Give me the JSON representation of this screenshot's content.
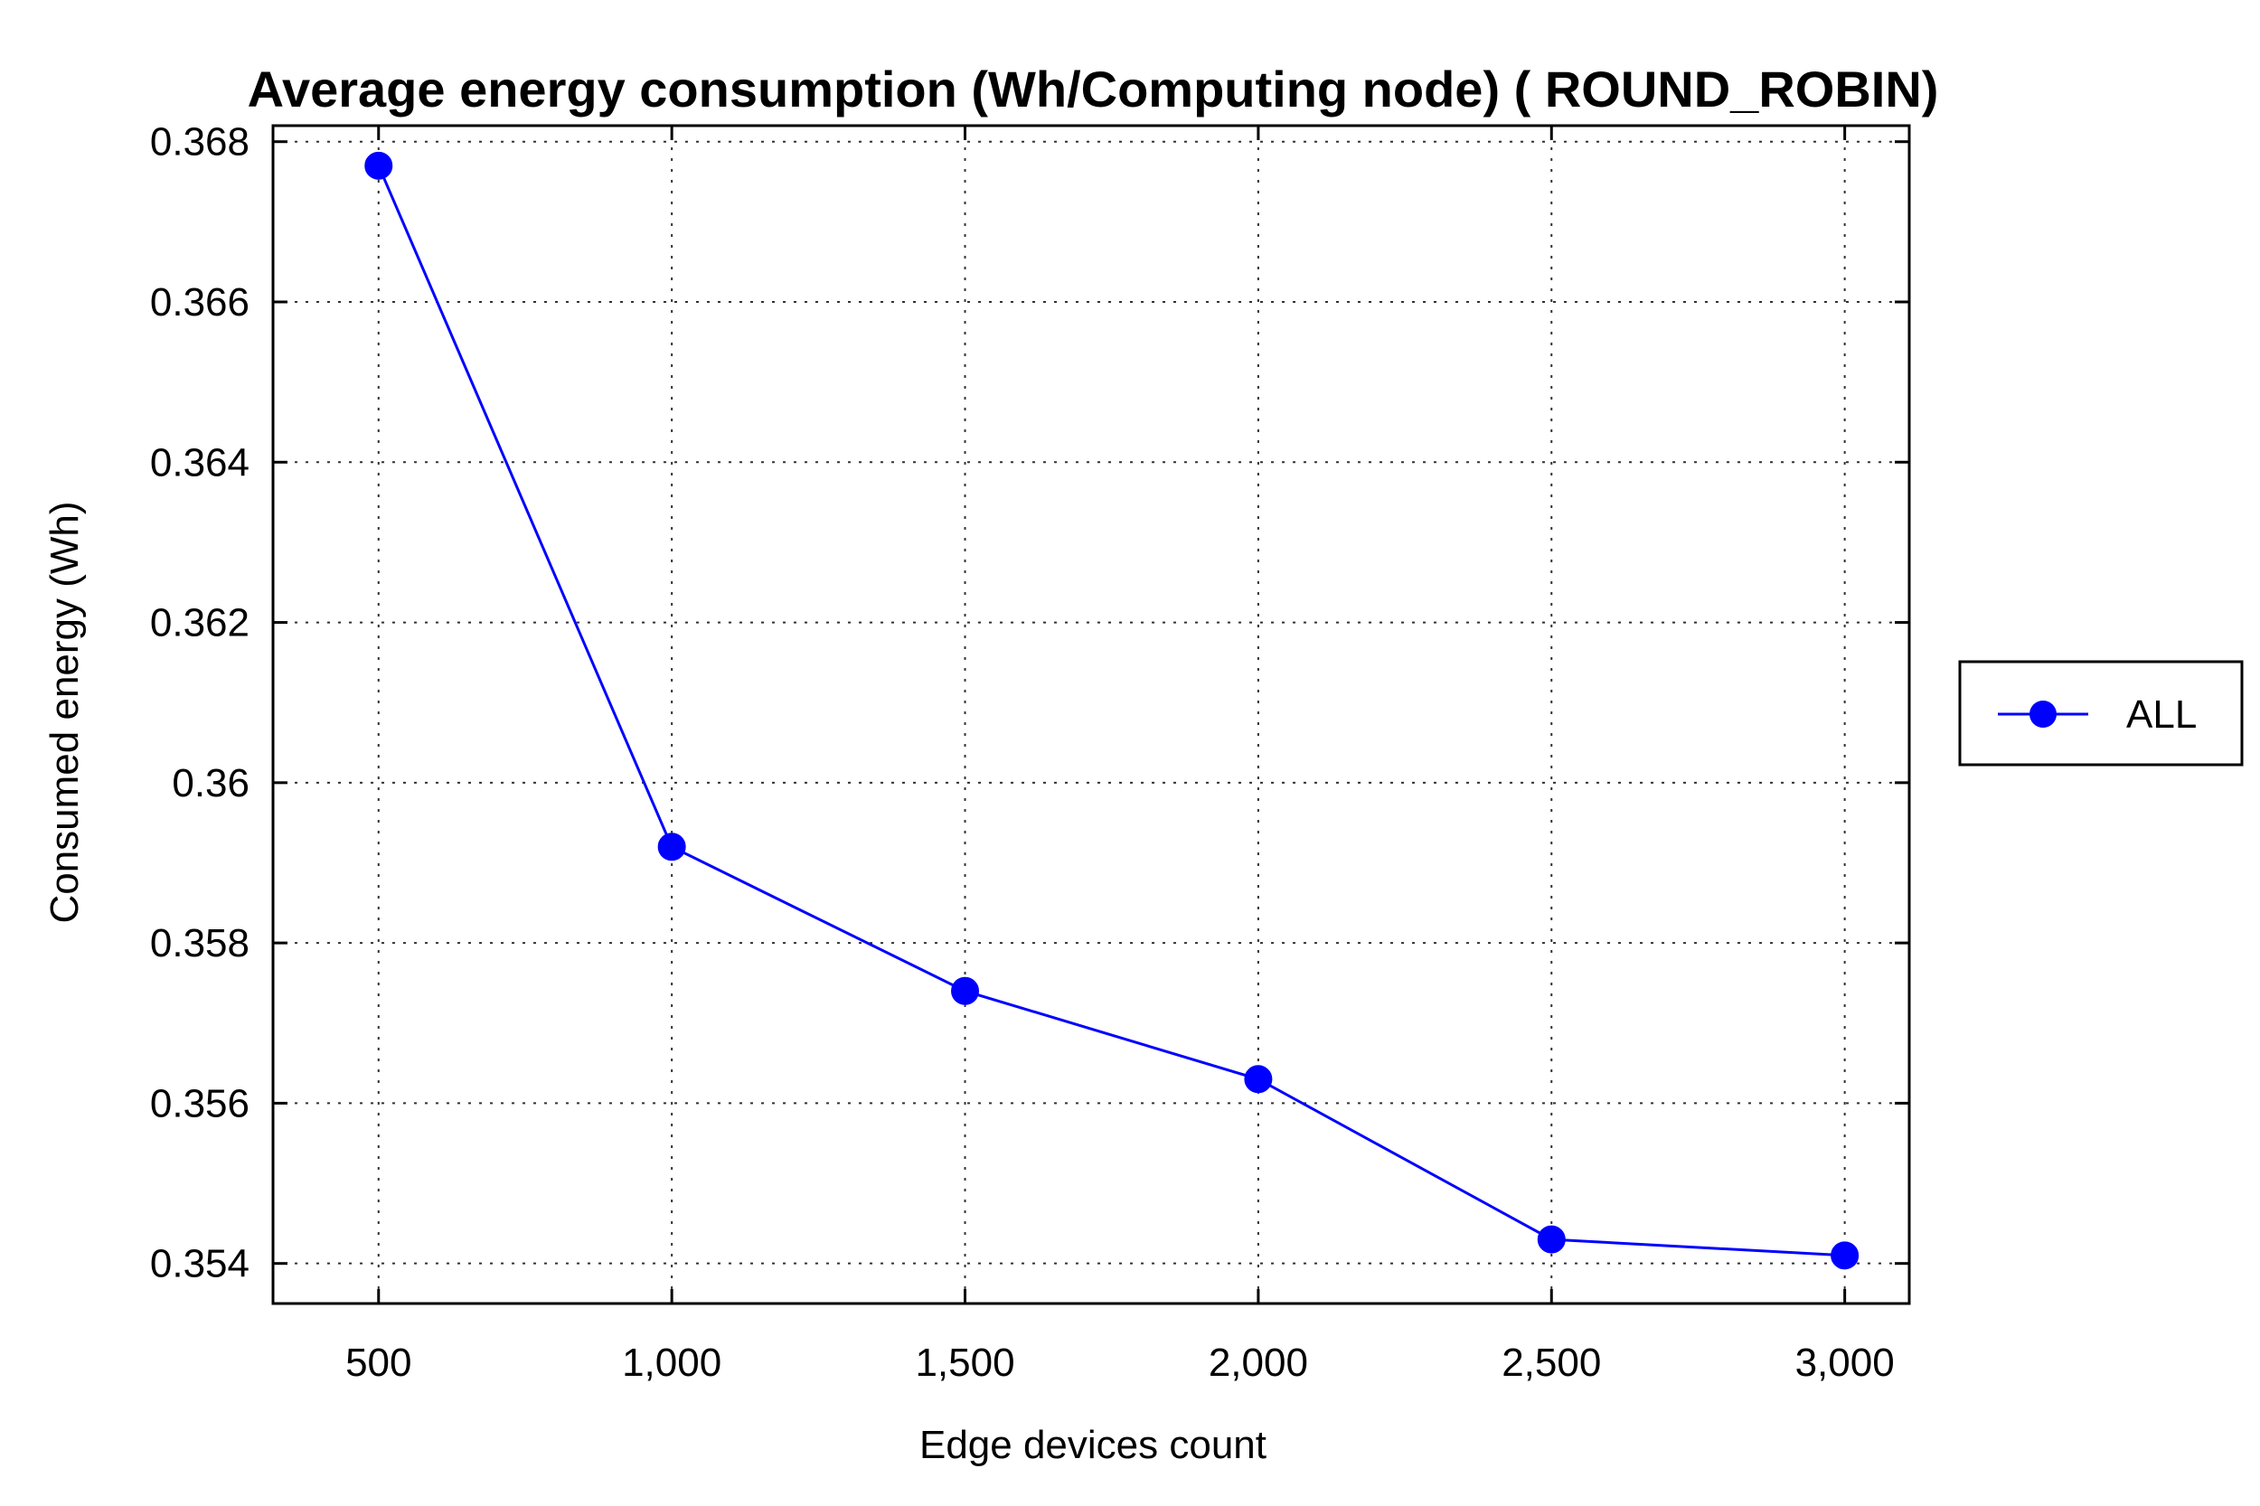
{
  "chart_data": {
    "type": "line",
    "title": "Average energy consumption (Wh/Computing node) ( ROUND_ROBIN)",
    "xlabel": "Edge devices count",
    "ylabel": "Consumed energy (Wh)",
    "x": [
      500,
      1000,
      1500,
      2000,
      2500,
      3000
    ],
    "x_tick_labels": [
      "500",
      "1,000",
      "1,500",
      "2,000",
      "2,500",
      "3,000"
    ],
    "y_ticks": [
      0.354,
      0.356,
      0.358,
      0.36,
      0.362,
      0.364,
      0.366,
      0.368
    ],
    "y_tick_labels": [
      "0.354",
      "0.356",
      "0.358",
      "0.36",
      "0.362",
      "0.364",
      "0.366",
      "0.368"
    ],
    "xlim": [
      320,
      3110
    ],
    "ylim": [
      0.3535,
      0.3682
    ],
    "grid": true,
    "legend_position": "outside-right",
    "series": [
      {
        "name": "ALL",
        "color": "#0000ff",
        "marker": "circle",
        "values": [
          0.3677,
          0.3592,
          0.3574,
          0.3563,
          0.3543,
          0.3541
        ]
      }
    ]
  }
}
